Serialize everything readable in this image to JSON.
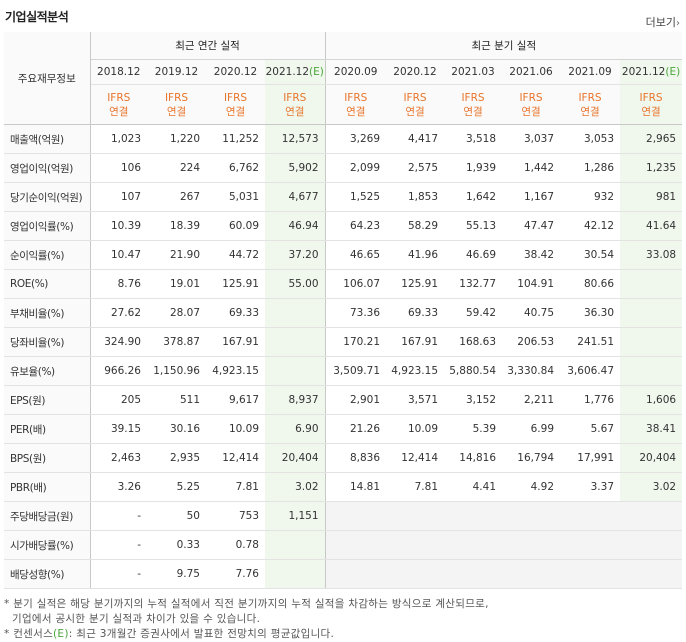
{
  "section_title": "기업실적분석",
  "more_label": "더보기",
  "more_chevron": "›",
  "headers": {
    "corner": "주요재무정보",
    "annual_group": "최근 연간 실적",
    "quarter_group": "최근 분기 실적",
    "annual_periods": [
      "2018.12",
      "2019.12",
      "2020.12",
      "2021.12"
    ],
    "quarter_periods": [
      "2020.09",
      "2020.12",
      "2021.03",
      "2021.06",
      "2021.09",
      "2021.12"
    ],
    "estimate_mark": "(E)",
    "ifrs_line1": "IFRS",
    "ifrs_line2": "연결"
  },
  "rows": [
    {
      "label": "매출액(억원)",
      "values": [
        "1,023",
        "1,220",
        "11,252",
        "12,573",
        "3,269",
        "4,417",
        "3,518",
        "3,037",
        "3,053",
        "2,965"
      ]
    },
    {
      "label": "영업이익(억원)",
      "values": [
        "106",
        "224",
        "6,762",
        "5,902",
        "2,099",
        "2,575",
        "1,939",
        "1,442",
        "1,286",
        "1,235"
      ]
    },
    {
      "label": "당기순이익(억원)",
      "values": [
        "107",
        "267",
        "5,031",
        "4,677",
        "1,525",
        "1,853",
        "1,642",
        "1,167",
        "932",
        "981"
      ]
    },
    {
      "label": "영업이익률(%)",
      "values": [
        "10.39",
        "18.39",
        "60.09",
        "46.94",
        "64.23",
        "58.29",
        "55.13",
        "47.47",
        "42.12",
        "41.64"
      ]
    },
    {
      "label": "순이익률(%)",
      "values": [
        "10.47",
        "21.90",
        "44.72",
        "37.20",
        "46.65",
        "41.96",
        "46.69",
        "38.42",
        "30.54",
        "33.08"
      ]
    },
    {
      "label": "ROE(%)",
      "values": [
        "8.76",
        "19.01",
        "125.91",
        "55.00",
        "106.07",
        "125.91",
        "132.77",
        "104.91",
        "80.66",
        ""
      ]
    },
    {
      "label": "부채비율(%)",
      "values": [
        "27.62",
        "28.07",
        "69.33",
        "",
        "73.36",
        "69.33",
        "59.42",
        "40.75",
        "36.30",
        ""
      ]
    },
    {
      "label": "당좌비율(%)",
      "values": [
        "324.90",
        "378.87",
        "167.91",
        "",
        "170.21",
        "167.91",
        "168.63",
        "206.53",
        "241.51",
        ""
      ]
    },
    {
      "label": "유보율(%)",
      "values": [
        "966.26",
        "1,150.96",
        "4,923.15",
        "",
        "3,509.71",
        "4,923.15",
        "5,880.54",
        "3,330.84",
        "3,606.47",
        ""
      ]
    },
    {
      "label": "EPS(원)",
      "values": [
        "205",
        "511",
        "9,617",
        "8,937",
        "2,901",
        "3,571",
        "3,152",
        "2,211",
        "1,776",
        "1,606"
      ]
    },
    {
      "label": "PER(배)",
      "values": [
        "39.15",
        "30.16",
        "10.09",
        "6.90",
        "21.26",
        "10.09",
        "5.39",
        "6.99",
        "5.67",
        "38.41"
      ]
    },
    {
      "label": "BPS(원)",
      "values": [
        "2,463",
        "2,935",
        "12,414",
        "20,404",
        "8,836",
        "12,414",
        "14,816",
        "16,794",
        "17,991",
        "20,404"
      ]
    },
    {
      "label": "PBR(배)",
      "values": [
        "3.26",
        "5.25",
        "7.81",
        "3.02",
        "14.81",
        "7.81",
        "4.41",
        "4.92",
        "3.37",
        "3.02"
      ]
    },
    {
      "label": "주당배당금(원)",
      "values": [
        "-",
        "50",
        "753",
        "1,151",
        "",
        "",
        "",
        "",
        "",
        ""
      ]
    },
    {
      "label": "시가배당률(%)",
      "values": [
        "-",
        "0.33",
        "0.78",
        "",
        "",
        "",
        "",
        "",
        "",
        ""
      ]
    },
    {
      "label": "배당성향(%)",
      "values": [
        "-",
        "9.75",
        "7.76",
        "",
        "",
        "",
        "",
        "",
        "",
        ""
      ]
    }
  ],
  "group_starts": [
    0,
    3,
    9,
    13
  ],
  "empty_quarter_from_row": 13,
  "notes": {
    "line1": "* 분기 실적은 해당 분기까지의 누적 실적에서 직전 분기까지의 누적 실적을 차감하는 방식으로 계산되므로,",
    "line2": "기업에서 공시한 분기 실적과 차이가 있을 수 있습니다.",
    "line3_prefix": "* 컨센서스",
    "line3_mark": "(E)",
    "line3_suffix": ": 최근 3개월간 증권사에서 발표한 전망치의 평균값입니다."
  }
}
